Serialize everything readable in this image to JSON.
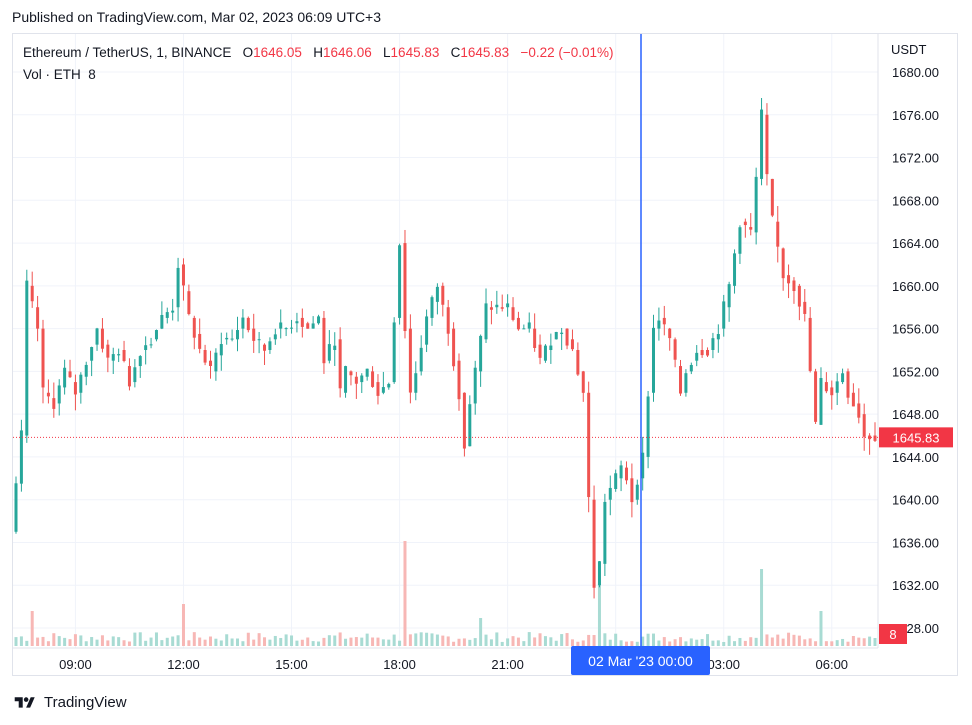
{
  "published": "Published on TradingView.com, Mar 02, 2023 06:09 UTC+3",
  "legend": {
    "symbol": "Ethereum / TetherUS, 1, BINANCE",
    "o_label": "O",
    "o": "1646.05",
    "h_label": "H",
    "h": "1646.06",
    "l_label": "L",
    "l": "1645.83",
    "c_label": "C",
    "c": "1645.83",
    "change": "−0.22 (−0.01%)",
    "vol_label": "Vol · ETH",
    "vol": "8"
  },
  "axis_unit": "USDT",
  "price_badge": "1645.83",
  "volume_badge": "8",
  "crosshair_label": "02 Mar '23   00:00",
  "footer_brand": "TradingView",
  "colors": {
    "up": "#26a69a",
    "down": "#ef5350",
    "crosshair": "#2962ff",
    "badge": "#f23645",
    "grid": "#f0f3fa",
    "text": "#131722",
    "vol_up": "#a8dbd3",
    "vol_down": "#f7b7b5"
  },
  "chart_data": {
    "type": "candlestick",
    "symbol": "Ethereum / TetherUS",
    "interval": "1",
    "exchange": "BINANCE",
    "ylim": [
      1626,
      1681
    ],
    "y_ticks": [
      "1628.00",
      "1632.00",
      "1636.00",
      "1640.00",
      "1644.00",
      "1648.00",
      "1652.00",
      "1656.00",
      "1660.00",
      "1664.00",
      "1668.00",
      "1672.00",
      "1676.00",
      "1680.00"
    ],
    "x_ticks": [
      "09:00",
      "12:00",
      "15:00",
      "18:00",
      "21:00",
      "00:00",
      "03:00",
      "06:00"
    ],
    "last_price": 1645.83,
    "crosshair_time": "02 Mar '23 00:00",
    "price_path": [
      [
        0,
        1637
      ],
      [
        2,
        1646
      ],
      [
        3,
        1660
      ],
      [
        5,
        1656
      ],
      [
        6,
        1650
      ],
      [
        8,
        1649
      ],
      [
        10,
        1652
      ],
      [
        12,
        1650
      ],
      [
        14,
        1653
      ],
      [
        16,
        1656
      ],
      [
        18,
        1653
      ],
      [
        20,
        1654
      ],
      [
        22,
        1651
      ],
      [
        24,
        1654
      ],
      [
        26,
        1655
      ],
      [
        28,
        1657
      ],
      [
        30,
        1658
      ],
      [
        31,
        1662
      ],
      [
        33,
        1657
      ],
      [
        35,
        1654
      ],
      [
        37,
        1652
      ],
      [
        39,
        1655
      ],
      [
        41,
        1655
      ],
      [
        43,
        1657
      ],
      [
        45,
        1655
      ],
      [
        47,
        1654
      ],
      [
        49,
        1656
      ],
      [
        51,
        1656
      ],
      [
        53,
        1657
      ],
      [
        55,
        1656
      ],
      [
        57,
        1657
      ],
      [
        58,
        1653
      ],
      [
        60,
        1655
      ],
      [
        61,
        1650
      ],
      [
        62,
        1652
      ],
      [
        64,
        1651
      ],
      [
        66,
        1652
      ],
      [
        68,
        1650
      ],
      [
        70,
        1651
      ],
      [
        71,
        1657
      ],
      [
        72,
        1664
      ],
      [
        73,
        1656
      ],
      [
        74,
        1650
      ],
      [
        75,
        1652
      ],
      [
        77,
        1657
      ],
      [
        79,
        1660
      ],
      [
        81,
        1656
      ],
      [
        83,
        1650
      ],
      [
        84,
        1645
      ],
      [
        85,
        1649
      ],
      [
        86,
        1652
      ],
      [
        88,
        1658
      ],
      [
        90,
        1658
      ],
      [
        92,
        1658
      ],
      [
        94,
        1656
      ],
      [
        96,
        1656
      ],
      [
        98,
        1653
      ],
      [
        100,
        1655
      ],
      [
        102,
        1656
      ],
      [
        104,
        1654
      ],
      [
        106,
        1650
      ],
      [
        107,
        1640
      ],
      [
        108,
        1632
      ],
      [
        109,
        1634
      ],
      [
        110,
        1640
      ],
      [
        112,
        1642
      ],
      [
        113,
        1643
      ],
      [
        114,
        1642
      ],
      [
        115,
        1640
      ],
      [
        117,
        1644
      ],
      [
        118,
        1650
      ],
      [
        119,
        1656
      ],
      [
        120,
        1657
      ],
      [
        122,
        1655
      ],
      [
        124,
        1650
      ],
      [
        125,
        1652
      ],
      [
        127,
        1654
      ],
      [
        129,
        1654
      ],
      [
        131,
        1656
      ],
      [
        133,
        1660
      ],
      [
        135,
        1666
      ],
      [
        137,
        1665
      ],
      [
        138,
        1670
      ],
      [
        139,
        1676
      ],
      [
        140,
        1670
      ],
      [
        141,
        1666
      ],
      [
        143,
        1661
      ],
      [
        145,
        1660
      ],
      [
        147,
        1657
      ],
      [
        148,
        1652
      ],
      [
        149,
        1647
      ],
      [
        150,
        1651
      ],
      [
        152,
        1650
      ],
      [
        154,
        1652
      ],
      [
        155,
        1650
      ],
      [
        157,
        1648
      ],
      [
        158,
        1646
      ]
    ],
    "volume_spikes": [
      [
        3,
        10
      ],
      [
        31,
        12
      ],
      [
        72,
        30
      ],
      [
        86,
        8
      ],
      [
        108,
        18
      ],
      [
        138,
        22
      ],
      [
        149,
        10
      ]
    ],
    "volume_last": 8
  }
}
